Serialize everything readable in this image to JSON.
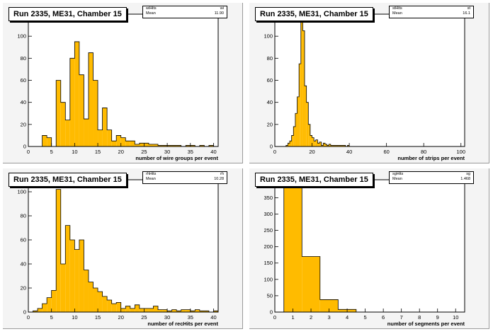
{
  "theme": {
    "fill": "#ffbb00",
    "frame_bg": "#f4f4f4"
  },
  "chart_data": [
    {
      "type": "bar",
      "title": "Run 2335, ME31, Chamber 15",
      "stats": {
        "name_label": "wiHits",
        "name_value": "wi",
        "mean_label": "Mean",
        "mean_value": "11.90"
      },
      "xlabel": "number of wire groups per event",
      "ylabel": "",
      "xlim": [
        0,
        41
      ],
      "ylim": [
        0,
        120
      ],
      "xticks": [
        0,
        5,
        10,
        15,
        20,
        25,
        30,
        35,
        40
      ],
      "yticks": [
        0,
        20,
        40,
        60,
        80,
        100
      ],
      "bin_start": 0,
      "bin_width": 1,
      "values": [
        0,
        0,
        0,
        10,
        8,
        0,
        60,
        40,
        24,
        80,
        95,
        65,
        25,
        85,
        60,
        15,
        35,
        15,
        5,
        10,
        8,
        5,
        5,
        2,
        3,
        3,
        2,
        2,
        1,
        1,
        1,
        1,
        1,
        0,
        1,
        1,
        0,
        1,
        0,
        1,
        0
      ]
    },
    {
      "type": "bar",
      "title": "Run 2335, ME31, Chamber 15",
      "stats": {
        "name_label": "stHits",
        "name_value": "st",
        "mean_label": "Mean",
        "mean_value": "16.1"
      },
      "xlabel": "number of strips per event",
      "ylabel": "",
      "xlim": [
        0,
        102
      ],
      "ylim": [
        0,
        120
      ],
      "xticks": [
        0,
        20,
        40,
        60,
        80,
        100
      ],
      "yticks": [
        0,
        20,
        40,
        60,
        80,
        100,
        120
      ],
      "bin_start": 0,
      "bin_width": 1,
      "values": [
        0,
        0,
        0,
        0,
        0,
        0,
        1,
        3,
        5,
        10,
        18,
        30,
        45,
        75,
        115,
        105,
        55,
        40,
        20,
        10,
        8,
        5,
        6,
        3,
        4,
        1,
        3,
        2,
        1,
        2,
        1,
        1,
        1,
        1,
        1,
        1,
        1,
        1,
        0,
        1,
        0,
        0,
        0,
        0,
        0,
        0,
        0,
        0,
        0,
        0,
        0,
        0,
        0,
        0,
        0,
        0,
        0,
        0,
        0,
        0,
        0,
        0,
        0,
        0,
        0,
        0,
        0,
        0,
        0,
        0,
        0,
        0,
        0,
        0,
        0,
        0,
        0,
        0,
        0,
        0,
        0,
        0,
        0,
        0,
        0,
        0,
        0,
        0,
        0,
        0,
        0,
        0,
        0,
        0,
        0,
        0,
        0,
        0,
        0,
        0,
        0
      ]
    },
    {
      "type": "bar",
      "title": "Run 2335, ME31, Chamber 15",
      "stats": {
        "name_label": "rhHits",
        "name_value": "rh",
        "mean_label": "Mean",
        "mean_value": "10.28"
      },
      "xlabel": "number of recHits per event",
      "ylabel": "",
      "xlim": [
        0,
        41
      ],
      "ylim": [
        0,
        110
      ],
      "xticks": [
        0,
        5,
        10,
        15,
        20,
        25,
        30,
        35,
        40
      ],
      "yticks": [
        0,
        20,
        40,
        60,
        80,
        100
      ],
      "bin_start": 0,
      "bin_width": 1,
      "values": [
        0,
        1,
        3,
        7,
        12,
        18,
        102,
        40,
        72,
        60,
        52,
        60,
        35,
        25,
        20,
        17,
        13,
        10,
        7,
        8,
        3,
        5,
        3,
        6,
        3,
        3,
        3,
        5,
        2,
        2,
        1,
        2,
        1,
        2,
        2,
        1,
        2,
        1,
        1,
        0,
        1
      ]
    },
    {
      "type": "bar",
      "title": "Run 2335, ME31, Chamber 15",
      "stats": {
        "name_label": "sgHits",
        "name_value": "sg",
        "mean_label": "Mean",
        "mean_value": "1.468"
      },
      "xlabel": "number of segments per event",
      "ylabel": "",
      "xlim": [
        0,
        10.5
      ],
      "ylim": [
        0,
        405
      ],
      "xticks": [
        0,
        1,
        2,
        3,
        4,
        5,
        6,
        7,
        8,
        9,
        10
      ],
      "yticks": [
        0,
        50,
        100,
        150,
        200,
        250,
        300,
        350,
        400
      ],
      "bin_start": -0.5,
      "bin_width": 1,
      "values": [
        0,
        390,
        170,
        38,
        8,
        0,
        0,
        0,
        0,
        0,
        0
      ]
    }
  ]
}
